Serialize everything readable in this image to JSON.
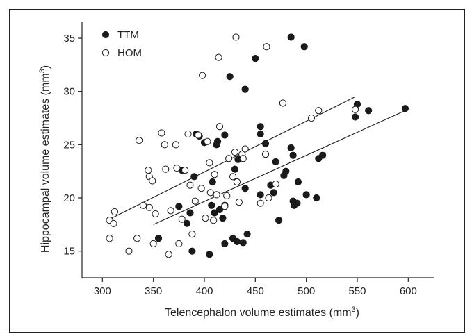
{
  "chart_data": {
    "type": "scatter",
    "xlabel": "Telencephalon volume estimates (mm",
    "xlabel_sup": "3",
    "xlabel_end": ")",
    "ylabel": "Hippocampal volume estimates (mm",
    "ylabel_sup": "3",
    "ylabel_end": ")",
    "xlim": [
      280,
      625
    ],
    "ylim": [
      12.5,
      36.5
    ],
    "xticks": [
      300,
      350,
      400,
      450,
      500,
      550,
      600
    ],
    "yticks": [
      15,
      20,
      25,
      30,
      35
    ],
    "grid": false,
    "legend_position": "top-left",
    "series": [
      {
        "name": "TTM",
        "marker": "filled-circle",
        "color": "#1a1a1a",
        "trendline": [
          [
            350,
            17.5
          ],
          [
            597,
            28.2
          ]
        ],
        "points": [
          [
            355,
            16.2
          ],
          [
            378,
            22.6
          ],
          [
            375,
            19.2
          ],
          [
            383,
            17.6
          ],
          [
            386,
            18.6
          ],
          [
            388,
            15.0
          ],
          [
            390,
            22.0
          ],
          [
            392,
            26.0
          ],
          [
            395,
            25.8
          ],
          [
            400,
            25.2
          ],
          [
            405,
            14.7
          ],
          [
            407,
            19.3
          ],
          [
            408,
            21.5
          ],
          [
            410,
            18.6
          ],
          [
            412,
            25.0
          ],
          [
            413,
            25.3
          ],
          [
            415,
            18.9
          ],
          [
            418,
            18.1
          ],
          [
            420,
            25.9
          ],
          [
            420,
            19.3
          ],
          [
            420,
            15.7
          ],
          [
            425,
            31.4
          ],
          [
            428,
            16.2
          ],
          [
            430,
            22.7
          ],
          [
            432,
            15.9
          ],
          [
            433,
            23.6
          ],
          [
            438,
            15.8
          ],
          [
            440,
            30.2
          ],
          [
            440,
            20.9
          ],
          [
            442,
            16.6
          ],
          [
            450,
            33.1
          ],
          [
            455,
            20.3
          ],
          [
            455,
            26.0
          ],
          [
            455,
            26.7
          ],
          [
            460,
            25.1
          ],
          [
            465,
            21.2
          ],
          [
            468,
            20.5
          ],
          [
            470,
            23.4
          ],
          [
            473,
            17.9
          ],
          [
            478,
            22.1
          ],
          [
            480,
            22.5
          ],
          [
            485,
            35.1
          ],
          [
            485,
            24.7
          ],
          [
            487,
            24.0
          ],
          [
            487,
            19.7
          ],
          [
            488,
            19.3
          ],
          [
            491,
            19.5
          ],
          [
            492,
            21.5
          ],
          [
            498,
            34.2
          ],
          [
            500,
            20.3
          ],
          [
            510,
            20.0
          ],
          [
            512,
            23.7
          ],
          [
            516,
            24.0
          ],
          [
            548,
            27.6
          ],
          [
            550,
            28.8
          ],
          [
            561,
            28.2
          ],
          [
            597,
            28.4
          ]
        ]
      },
      {
        "name": "HOM",
        "marker": "open-circle",
        "color": "#1a1a1a",
        "trendline": [
          [
            307,
            18.0
          ],
          [
            548,
            29.5
          ]
        ],
        "points": [
          [
            307,
            16.2
          ],
          [
            307,
            17.9
          ],
          [
            312,
            18.7
          ],
          [
            311,
            17.6
          ],
          [
            326,
            15.0
          ],
          [
            334,
            16.2
          ],
          [
            336,
            25.4
          ],
          [
            340,
            19.3
          ],
          [
            345,
            22.6
          ],
          [
            346,
            22.0
          ],
          [
            346,
            19.1
          ],
          [
            349,
            21.6
          ],
          [
            350,
            15.7
          ],
          [
            352,
            18.5
          ],
          [
            358,
            26.1
          ],
          [
            361,
            25.0
          ],
          [
            362,
            22.7
          ],
          [
            365,
            14.7
          ],
          [
            367,
            18.8
          ],
          [
            372,
            25.0
          ],
          [
            373,
            22.8
          ],
          [
            375,
            15.7
          ],
          [
            378,
            18.0
          ],
          [
            381,
            22.6
          ],
          [
            384,
            26.0
          ],
          [
            386,
            21.2
          ],
          [
            388,
            16.6
          ],
          [
            391,
            19.7
          ],
          [
            394,
            25.9
          ],
          [
            397,
            20.9
          ],
          [
            398,
            31.5
          ],
          [
            401,
            18.1
          ],
          [
            403,
            25.3
          ],
          [
            405,
            23.3
          ],
          [
            406,
            20.5
          ],
          [
            409,
            17.9
          ],
          [
            410,
            22.2
          ],
          [
            412,
            20.3
          ],
          [
            414,
            33.2
          ],
          [
            415,
            26.7
          ],
          [
            420,
            19.2
          ],
          [
            422,
            20.2
          ],
          [
            424,
            23.7
          ],
          [
            428,
            22.0
          ],
          [
            430,
            24.3
          ],
          [
            431,
            35.1
          ],
          [
            432,
            21.5
          ],
          [
            434,
            19.6
          ],
          [
            437,
            24.1
          ],
          [
            438,
            23.7
          ],
          [
            440,
            24.6
          ],
          [
            455,
            19.5
          ],
          [
            460,
            24.1
          ],
          [
            461,
            34.2
          ],
          [
            463,
            20.0
          ],
          [
            470,
            21.3
          ],
          [
            477,
            28.9
          ],
          [
            505,
            27.5
          ],
          [
            512,
            28.2
          ],
          [
            548,
            28.3
          ]
        ]
      }
    ]
  }
}
